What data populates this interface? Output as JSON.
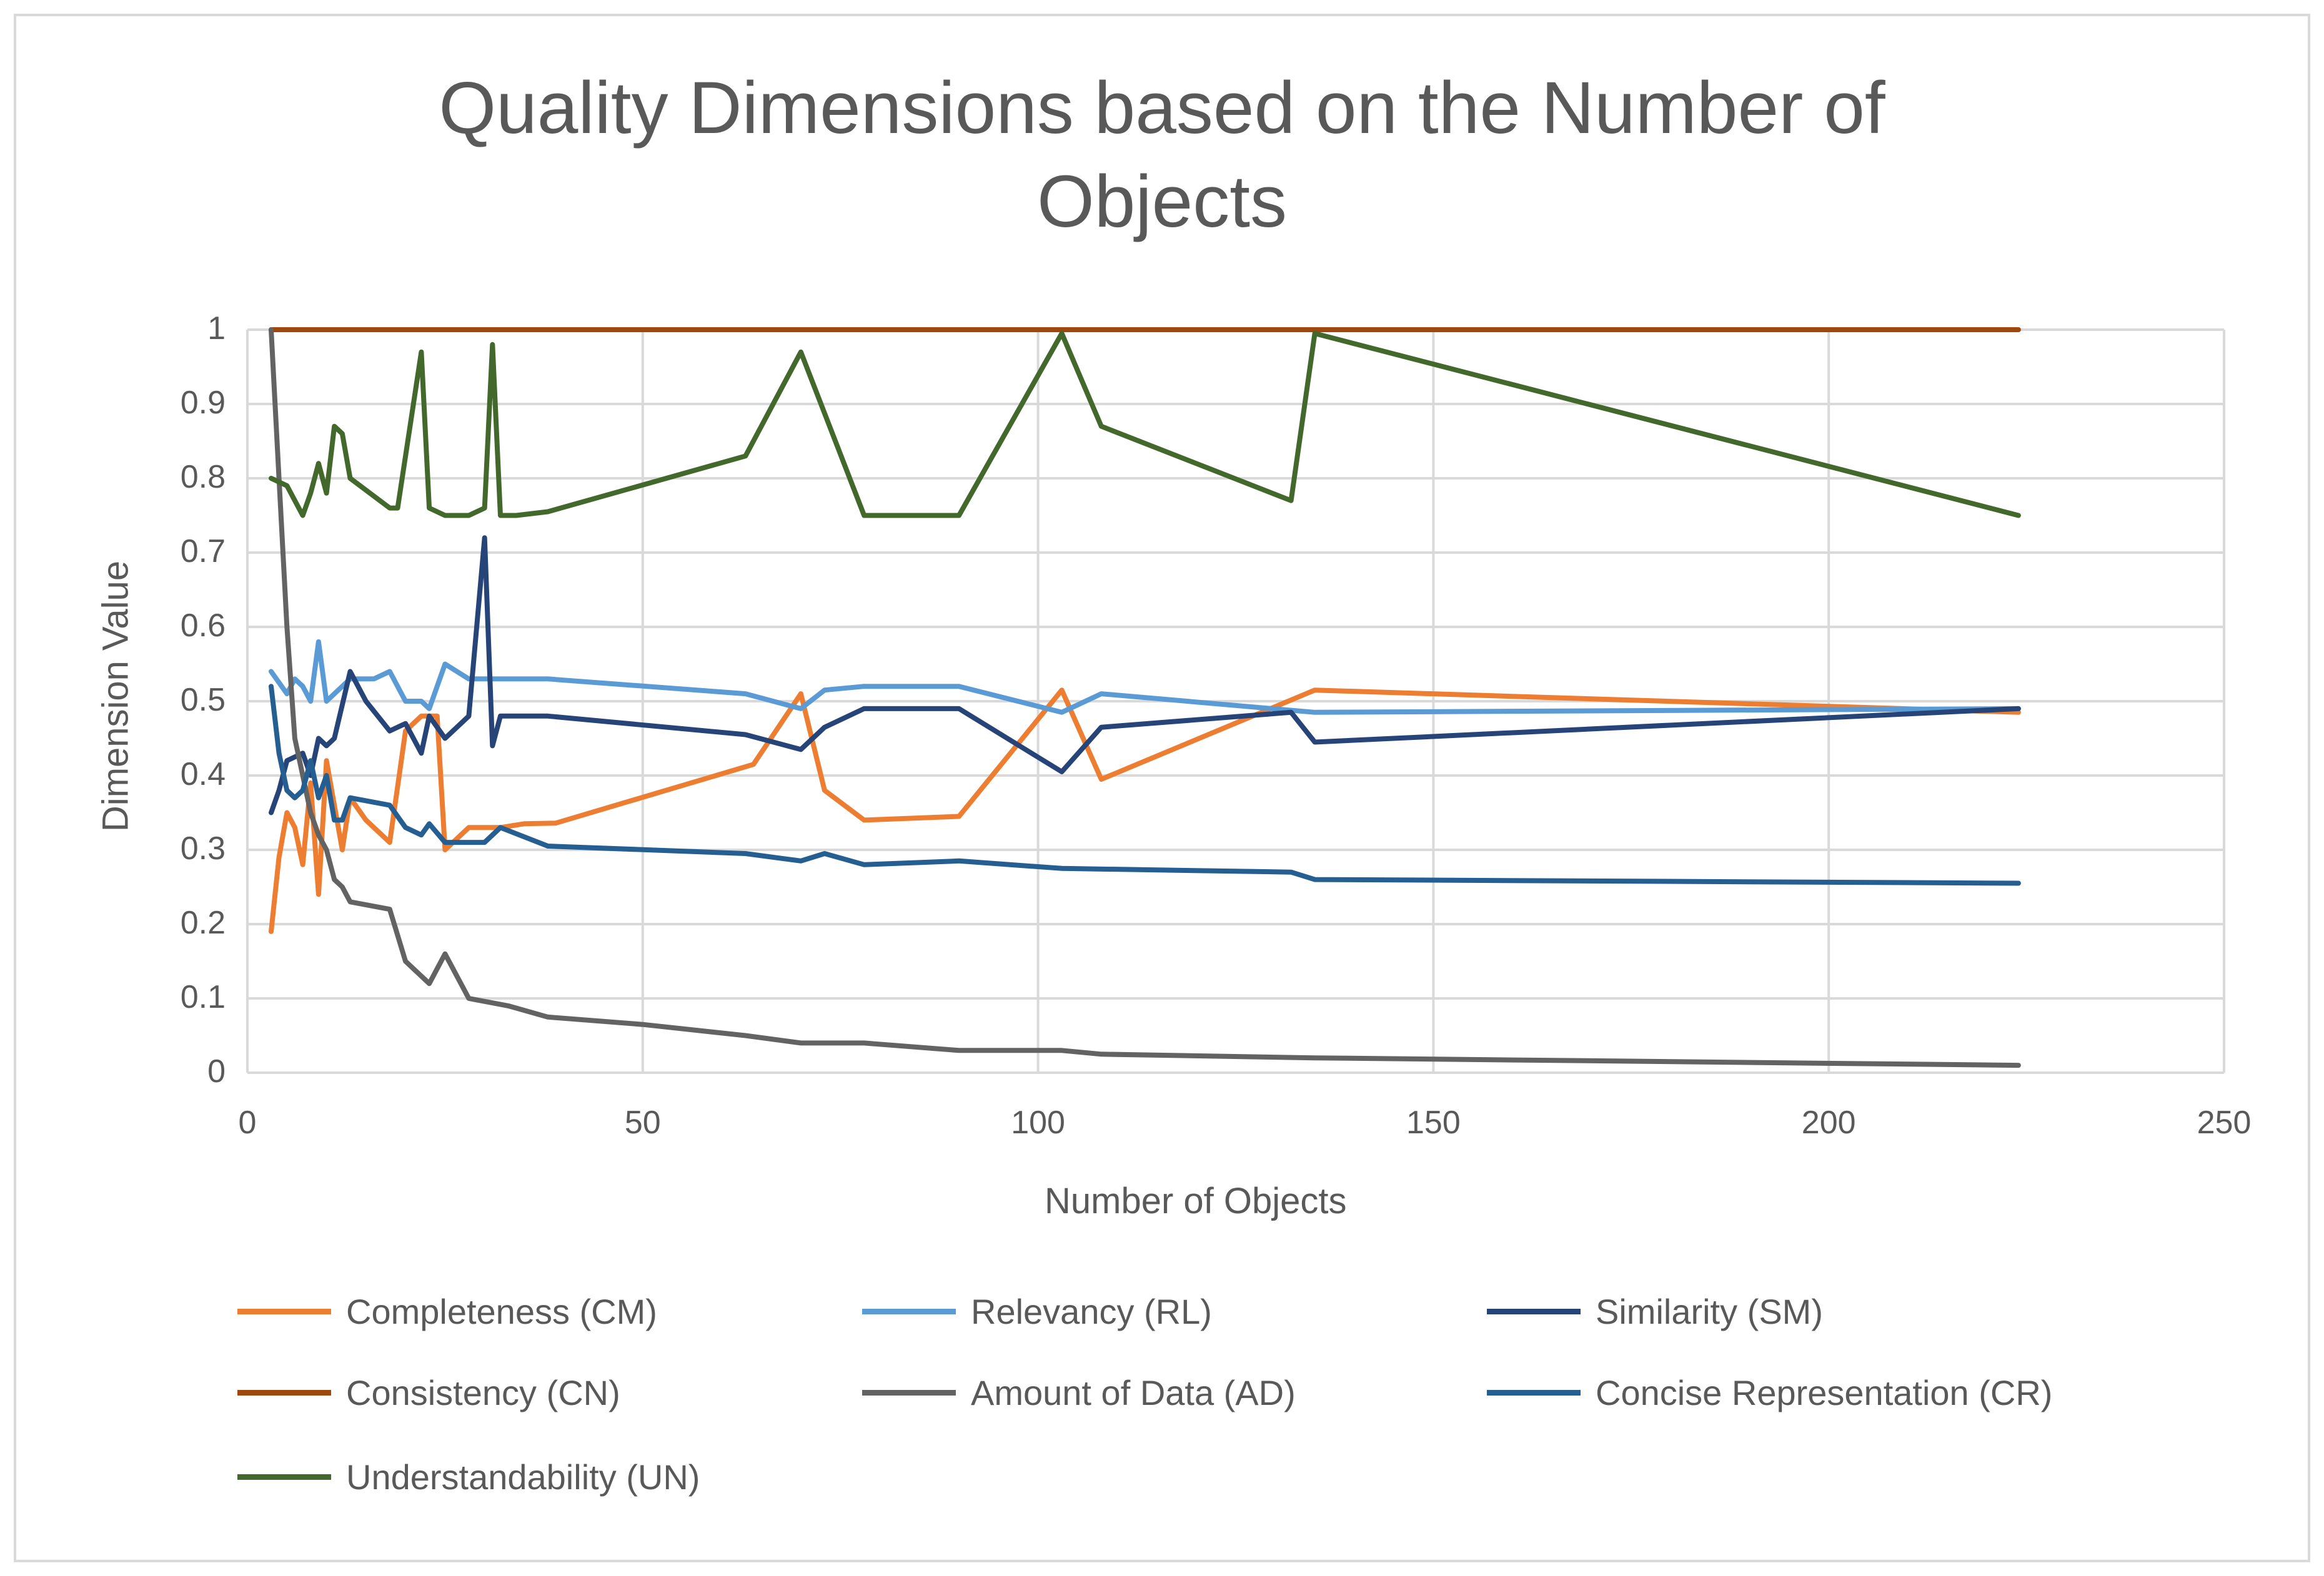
{
  "chart_data": {
    "type": "line",
    "title": "Quality Dimensions based on the Number of Objects",
    "title_lines": [
      "Quality Dimensions based on the Number of",
      "Objects"
    ],
    "xlabel": "Number  of Objects",
    "ylabel": "Dimension Value",
    "xlim": [
      0,
      250
    ],
    "ylim": [
      0,
      1
    ],
    "x_ticks": [
      "0",
      "50",
      "100",
      "150",
      "200",
      "250"
    ],
    "y_ticks": [
      "0",
      "0.1",
      "0.2",
      "0.3",
      "0.4",
      "0.5",
      "0.6",
      "0.7",
      "0.8",
      "0.9",
      "1"
    ],
    "x_tick_values": [
      0,
      50,
      100,
      150,
      200,
      250
    ],
    "y_tick_values": [
      0,
      0.1,
      0.2,
      0.3,
      0.4,
      0.5,
      0.6,
      0.7,
      0.8,
      0.9,
      1
    ],
    "grid": true,
    "legend_position": "bottom",
    "series": [
      {
        "name": "Completeness (CM)",
        "color": "#ed7d31",
        "points": [
          [
            3,
            0.19
          ],
          [
            4,
            0.29
          ],
          [
            5,
            0.35
          ],
          [
            6,
            0.33
          ],
          [
            7,
            0.28
          ],
          [
            8,
            0.39
          ],
          [
            9,
            0.24
          ],
          [
            10,
            0.42
          ],
          [
            11,
            0.36
          ],
          [
            12,
            0.3
          ],
          [
            13,
            0.37
          ],
          [
            15,
            0.34
          ],
          [
            18,
            0.31
          ],
          [
            20,
            0.46
          ],
          [
            22,
            0.48
          ],
          [
            24,
            0.48
          ],
          [
            25,
            0.3
          ],
          [
            28,
            0.33
          ],
          [
            32,
            0.33
          ],
          [
            35,
            0.335
          ],
          [
            39,
            0.336
          ],
          [
            64,
            0.415
          ],
          [
            70,
            0.51
          ],
          [
            73,
            0.38
          ],
          [
            78,
            0.34
          ],
          [
            90,
            0.345
          ],
          [
            103,
            0.515
          ],
          [
            108,
            0.395
          ],
          [
            135,
            0.515
          ],
          [
            224,
            0.485
          ]
        ]
      },
      {
        "name": "Relevancy (RL)",
        "color": "#5b9bd5",
        "points": [
          [
            3,
            0.54
          ],
          [
            5,
            0.51
          ],
          [
            6,
            0.53
          ],
          [
            7,
            0.52
          ],
          [
            8,
            0.5
          ],
          [
            9,
            0.58
          ],
          [
            10,
            0.5
          ],
          [
            11,
            0.51
          ],
          [
            12,
            0.52
          ],
          [
            13,
            0.53
          ],
          [
            16,
            0.53
          ],
          [
            18,
            0.54
          ],
          [
            20,
            0.5
          ],
          [
            22,
            0.5
          ],
          [
            23,
            0.49
          ],
          [
            25,
            0.55
          ],
          [
            28,
            0.53
          ],
          [
            38,
            0.53
          ],
          [
            63,
            0.51
          ],
          [
            70,
            0.49
          ],
          [
            73,
            0.515
          ],
          [
            78,
            0.52
          ],
          [
            90,
            0.52
          ],
          [
            103,
            0.485
          ],
          [
            108,
            0.51
          ],
          [
            135,
            0.485
          ],
          [
            224,
            0.49
          ]
        ]
      },
      {
        "name": "Similarity (SM)",
        "color": "#264478",
        "points": [
          [
            3,
            0.35
          ],
          [
            4,
            0.38
          ],
          [
            5,
            0.42
          ],
          [
            7,
            0.43
          ],
          [
            8,
            0.4
          ],
          [
            9,
            0.45
          ],
          [
            10,
            0.44
          ],
          [
            11,
            0.45
          ],
          [
            13,
            0.54
          ],
          [
            15,
            0.5
          ],
          [
            18,
            0.46
          ],
          [
            20,
            0.47
          ],
          [
            22,
            0.43
          ],
          [
            23,
            0.48
          ],
          [
            25,
            0.45
          ],
          [
            28,
            0.48
          ],
          [
            30,
            0.72
          ],
          [
            31,
            0.44
          ],
          [
            32,
            0.48
          ],
          [
            38,
            0.48
          ],
          [
            63,
            0.455
          ],
          [
            70,
            0.435
          ],
          [
            73,
            0.465
          ],
          [
            78,
            0.49
          ],
          [
            90,
            0.49
          ],
          [
            103,
            0.405
          ],
          [
            108,
            0.465
          ],
          [
            132,
            0.485
          ],
          [
            135,
            0.445
          ],
          [
            224,
            0.49
          ]
        ]
      },
      {
        "name": "Consistency (CN)",
        "color": "#9e480e",
        "points": [
          [
            3,
            1.0
          ],
          [
            224,
            1.0
          ]
        ]
      },
      {
        "name": "Amount of Data (AD)",
        "color": "#636363",
        "points": [
          [
            3,
            1.0
          ],
          [
            4,
            0.8
          ],
          [
            5,
            0.6
          ],
          [
            6,
            0.45
          ],
          [
            7,
            0.4
          ],
          [
            8,
            0.35
          ],
          [
            9,
            0.32
          ],
          [
            10,
            0.3
          ],
          [
            11,
            0.26
          ],
          [
            12,
            0.25
          ],
          [
            13,
            0.23
          ],
          [
            18,
            0.22
          ],
          [
            20,
            0.15
          ],
          [
            23,
            0.12
          ],
          [
            25,
            0.16
          ],
          [
            28,
            0.1
          ],
          [
            33,
            0.09
          ],
          [
            38,
            0.075
          ],
          [
            50,
            0.065
          ],
          [
            63,
            0.05
          ],
          [
            70,
            0.04
          ],
          [
            78,
            0.04
          ],
          [
            90,
            0.03
          ],
          [
            103,
            0.03
          ],
          [
            108,
            0.025
          ],
          [
            135,
            0.02
          ],
          [
            224,
            0.01
          ]
        ]
      },
      {
        "name": "Concise Representation (CR)",
        "color": "#255e91",
        "points": [
          [
            3,
            0.52
          ],
          [
            4,
            0.43
          ],
          [
            5,
            0.38
          ],
          [
            6,
            0.37
          ],
          [
            7,
            0.38
          ],
          [
            8,
            0.42
          ],
          [
            9,
            0.37
          ],
          [
            10,
            0.4
          ],
          [
            11,
            0.34
          ],
          [
            12,
            0.34
          ],
          [
            13,
            0.37
          ],
          [
            18,
            0.36
          ],
          [
            20,
            0.33
          ],
          [
            22,
            0.32
          ],
          [
            23,
            0.335
          ],
          [
            25,
            0.31
          ],
          [
            30,
            0.31
          ],
          [
            32,
            0.33
          ],
          [
            38,
            0.305
          ],
          [
            63,
            0.295
          ],
          [
            70,
            0.285
          ],
          [
            73,
            0.295
          ],
          [
            78,
            0.28
          ],
          [
            90,
            0.285
          ],
          [
            103,
            0.275
          ],
          [
            132,
            0.27
          ],
          [
            135,
            0.26
          ],
          [
            224,
            0.255
          ]
        ]
      },
      {
        "name": "Understandability (UN)",
        "color": "#43682b",
        "points": [
          [
            3,
            0.8
          ],
          [
            5,
            0.79
          ],
          [
            7,
            0.75
          ],
          [
            8,
            0.78
          ],
          [
            9,
            0.82
          ],
          [
            10,
            0.78
          ],
          [
            11,
            0.87
          ],
          [
            12,
            0.86
          ],
          [
            13,
            0.8
          ],
          [
            18,
            0.76
          ],
          [
            19,
            0.76
          ],
          [
            22,
            0.97
          ],
          [
            23,
            0.76
          ],
          [
            25,
            0.75
          ],
          [
            28,
            0.75
          ],
          [
            30,
            0.76
          ],
          [
            31,
            0.98
          ],
          [
            32,
            0.75
          ],
          [
            34,
            0.75
          ],
          [
            38,
            0.755
          ],
          [
            63,
            0.83
          ],
          [
            70,
            0.97
          ],
          [
            78,
            0.75
          ],
          [
            90,
            0.75
          ],
          [
            103,
            0.995
          ],
          [
            108,
            0.87
          ],
          [
            132,
            0.77
          ],
          [
            135,
            0.995
          ],
          [
            224,
            0.75
          ]
        ]
      }
    ]
  }
}
